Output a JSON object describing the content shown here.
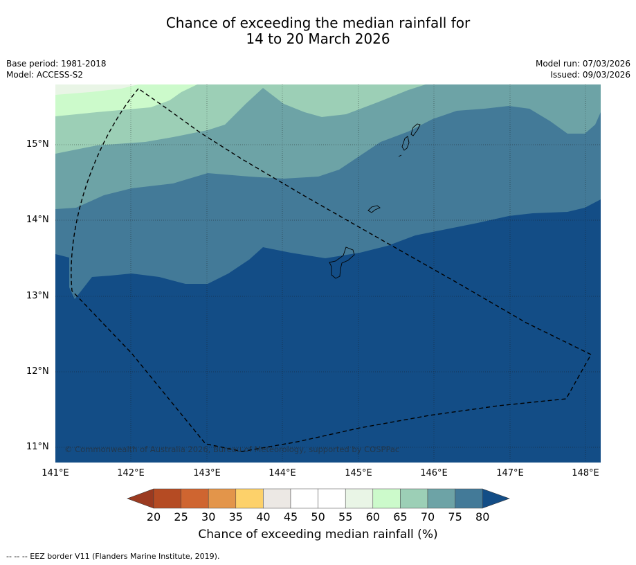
{
  "title": {
    "line1": "Chance of exceeding the median rainfall for",
    "line2": "14 to 20 March 2026"
  },
  "meta": {
    "base_period": "Base period: 1981-2018",
    "model": "Model: ACCESS-S2",
    "model_run": "Model run: 07/03/2026",
    "issued": "Issued: 09/03/2026"
  },
  "axes": {
    "lat_labels": [
      "15°N",
      "14°N",
      "13°N",
      "12°N",
      "11°N"
    ],
    "lon_labels": [
      "141°E",
      "142°E",
      "143°E",
      "144°E",
      "145°E",
      "146°E",
      "147°E",
      "148°E"
    ]
  },
  "colorbar": {
    "ticks": [
      "20",
      "25",
      "30",
      "35",
      "40",
      "45",
      "50",
      "55",
      "60",
      "65",
      "70",
      "75",
      "80"
    ],
    "colors": [
      "#b54b23",
      "#cf6530",
      "#e3954a",
      "#fdd16a",
      "#ece8e4",
      "#ffffff",
      "#ffffff",
      "#e9f5e6",
      "#ccfacb",
      "#9ccfb6",
      "#6da3a6",
      "#437a98"
    ],
    "under_color": "#9b3a20",
    "over_color": "#134d86",
    "title": "Chance of exceeding median rainfall (%)"
  },
  "copyright": "© Commonwealth of Australia 2026, Bureau of Meteorology, supported by COSPPac",
  "footnote": "--  --  -- EEZ border V11 (Flanders Marine Institute, 2019)."
}
